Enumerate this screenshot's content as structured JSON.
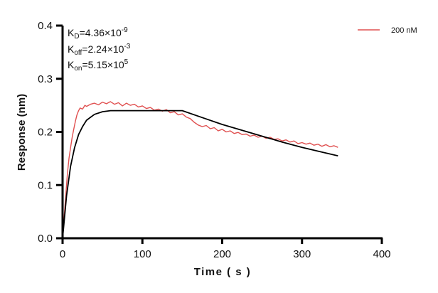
{
  "chart_data": {
    "type": "line",
    "title": "",
    "xlabel": "Time ( s )",
    "ylabel": "Response (nm)",
    "xlim": [
      0,
      400
    ],
    "ylim": [
      0,
      0.4
    ],
    "xticks": [
      "0",
      "100",
      "200",
      "300",
      "400"
    ],
    "yticks": [
      "0.0",
      "0.1",
      "0.2",
      "0.3",
      "0.4"
    ],
    "grid": false,
    "legend_position": "top-right",
    "annotations": [
      {
        "symbol": "K",
        "sub": "D",
        "value": "=4.36×10",
        "exp": "-9"
      },
      {
        "symbol": "K",
        "sub": "off",
        "value": "=2.24×10",
        "exp": "-3"
      },
      {
        "symbol": "K",
        "sub": "on",
        "value": "=5.15×10",
        "exp": "5"
      }
    ],
    "series": [
      {
        "name": "200 nM",
        "color": "#e05050",
        "x": [
          0,
          2,
          4,
          6,
          8,
          10,
          12,
          14,
          16,
          18,
          20,
          22,
          25,
          28,
          30,
          35,
          40,
          45,
          50,
          55,
          60,
          65,
          70,
          75,
          80,
          85,
          90,
          95,
          100,
          105,
          110,
          115,
          120,
          125,
          130,
          135,
          140,
          145,
          150,
          155,
          160,
          165,
          170,
          175,
          180,
          185,
          190,
          195,
          200,
          205,
          210,
          215,
          220,
          225,
          230,
          235,
          240,
          245,
          250,
          255,
          260,
          265,
          270,
          275,
          280,
          285,
          290,
          295,
          300,
          305,
          310,
          315,
          320,
          325,
          330,
          335,
          340,
          345
        ],
        "y": [
          0,
          0.04,
          0.08,
          0.12,
          0.15,
          0.17,
          0.19,
          0.205,
          0.22,
          0.232,
          0.24,
          0.245,
          0.243,
          0.25,
          0.248,
          0.252,
          0.254,
          0.251,
          0.256,
          0.253,
          0.257,
          0.252,
          0.255,
          0.249,
          0.254,
          0.25,
          0.252,
          0.247,
          0.249,
          0.244,
          0.246,
          0.241,
          0.243,
          0.239,
          0.242,
          0.236,
          0.238,
          0.232,
          0.234,
          0.228,
          0.225,
          0.218,
          0.213,
          0.21,
          0.212,
          0.206,
          0.208,
          0.202,
          0.205,
          0.2,
          0.202,
          0.197,
          0.199,
          0.195,
          0.196,
          0.192,
          0.194,
          0.19,
          0.192,
          0.188,
          0.19,
          0.186,
          0.187,
          0.183,
          0.185,
          0.181,
          0.183,
          0.178,
          0.18,
          0.177,
          0.179,
          0.175,
          0.177,
          0.173,
          0.176,
          0.172,
          0.174,
          0.171
        ]
      },
      {
        "color": "#000000",
        "x": [
          0,
          5,
          10,
          15,
          20,
          25,
          30,
          40,
          50,
          60,
          150,
          175,
          200,
          225,
          250,
          275,
          300,
          325,
          345
        ],
        "y": [
          0,
          0.08,
          0.135,
          0.17,
          0.195,
          0.21,
          0.222,
          0.233,
          0.238,
          0.24,
          0.24,
          0.227,
          0.214,
          0.203,
          0.192,
          0.181,
          0.171,
          0.162,
          0.155
        ]
      }
    ]
  }
}
